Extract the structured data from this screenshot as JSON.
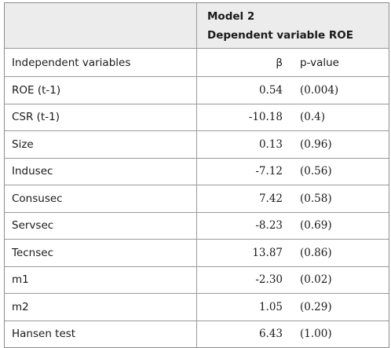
{
  "header": {
    "model": "Model 2",
    "dependent": "Dependent variable ROE"
  },
  "columns": {
    "variables": "Independent variables",
    "beta": "β",
    "pvalue": "p-value"
  },
  "rows": [
    {
      "name": "ROE (t-1)",
      "beta": "0.54",
      "pvalue": "(0.004)"
    },
    {
      "name": "CSR (t-1)",
      "beta": "-10.18",
      "pvalue": "(0.4)"
    },
    {
      "name": "Size",
      "beta": "0.13",
      "pvalue": "(0.96)"
    },
    {
      "name": "Indusec",
      "beta": "-7.12",
      "pvalue": "(0.56)"
    },
    {
      "name": "Consusec",
      "beta": "7.42",
      "pvalue": "(0.58)"
    },
    {
      "name": "Servsec",
      "beta": "-8.23",
      "pvalue": "(0.69)"
    },
    {
      "name": "Tecnsec",
      "beta": "13.87",
      "pvalue": "(0.86)"
    },
    {
      "name": "m1",
      "beta": "-2.30",
      "pvalue": "(0.02)"
    },
    {
      "name": "m2",
      "beta": "1.05",
      "pvalue": "(0.29)"
    },
    {
      "name": "Hansen test",
      "beta": "6.43",
      "pvalue": "(1.00)"
    }
  ]
}
